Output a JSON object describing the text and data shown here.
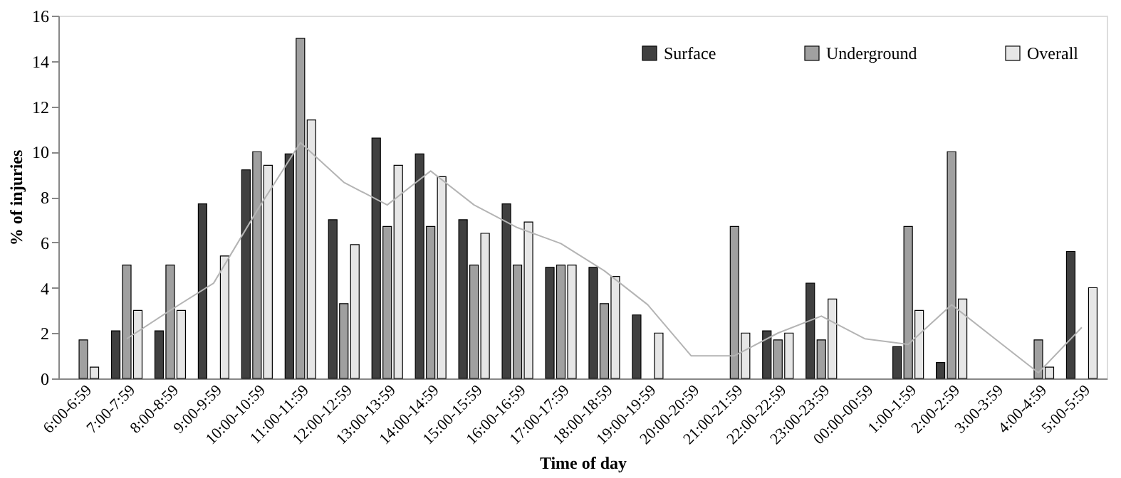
{
  "chart_data": {
    "type": "bar",
    "xlabel": "Time of day",
    "ylabel": "% of injuries",
    "categories": [
      "6:00-6:59",
      "7:00-7:59",
      "8:00-8:59",
      "9:00-9:59",
      "10:00-10:59",
      "11:00-11:59",
      "12:00-12:59",
      "13:00-13:59",
      "14:00-14:59",
      "15:00-15:59",
      "16:00-16:59",
      "17:00-17:59",
      "18:00-18:59",
      "19:00-19:59",
      "20:00-20:59",
      "21:00-21:59",
      "22:00-22:59",
      "23:00-23:59",
      "00:00-00:59",
      "1:00-1:59",
      "2:00-2:59",
      "3:00-3:59",
      "4:00-4:59",
      "5:00-5:59"
    ],
    "series": [
      {
        "name": "Surface",
        "color": "#404040",
        "values": [
          null,
          2.1,
          2.1,
          7.7,
          9.2,
          9.9,
          7.0,
          10.6,
          9.9,
          7.0,
          7.7,
          4.9,
          4.9,
          2.8,
          null,
          null,
          2.1,
          4.2,
          null,
          1.4,
          0.7,
          null,
          null,
          5.6
        ]
      },
      {
        "name": "Underground",
        "color": "#a0a0a0",
        "values": [
          1.7,
          5.0,
          5.0,
          null,
          10,
          15,
          3.3,
          6.7,
          6.7,
          5.0,
          5.0,
          5.0,
          3.3,
          null,
          null,
          6.7,
          1.7,
          1.7,
          null,
          6.7,
          10,
          null,
          1.7,
          null
        ]
      },
      {
        "name": "Overall",
        "color": "#e6e6e6",
        "values": [
          0.5,
          3.0,
          3.0,
          5.4,
          9.4,
          11.4,
          5.9,
          9.4,
          8.9,
          6.4,
          6.9,
          5.0,
          4.5,
          2.0,
          null,
          2.0,
          2.0,
          3.5,
          null,
          3.0,
          3.5,
          null,
          0.5,
          4.0
        ]
      },
      {
        "type": "line",
        "color": "#b4b4b4",
        "values": [
          null,
          1.75,
          3.0,
          4.2,
          7.4,
          10.4,
          8.65,
          7.65,
          9.15,
          7.65,
          6.65,
          5.95,
          4.75,
          3.25,
          1.0,
          1.0,
          2.0,
          2.75,
          1.75,
          1.5,
          3.25,
          1.75,
          0.25,
          2.25
        ]
      }
    ],
    "ylim": [
      0,
      16
    ],
    "yticks": [
      0,
      2,
      4,
      6,
      8,
      10,
      12,
      14,
      16
    ],
    "grid": false,
    "legend": "top right",
    "marker": "none",
    "line_style": "solid"
  }
}
